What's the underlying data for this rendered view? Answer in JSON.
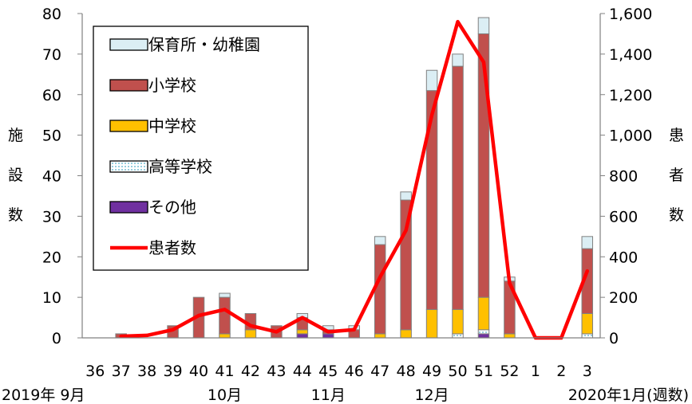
{
  "chart_data": {
    "type": "bar",
    "stacked": true,
    "categories": [
      "36",
      "37",
      "38",
      "39",
      "40",
      "41",
      "42",
      "43",
      "44",
      "45",
      "46",
      "47",
      "48",
      "49",
      "50",
      "51",
      "52",
      "1",
      "2",
      "3"
    ],
    "series": [
      {
        "name": "その他",
        "color": "#7030a0",
        "values": [
          0,
          0,
          0,
          0,
          0,
          0,
          0,
          0,
          1,
          1,
          0,
          0,
          0,
          0,
          0,
          1,
          0,
          0,
          0,
          0
        ]
      },
      {
        "name": "高等学校",
        "color": "#d5f0ea",
        "values": [
          0,
          0,
          0,
          0,
          0,
          0,
          0,
          0,
          0,
          0,
          0,
          0,
          0,
          0,
          1,
          1,
          0,
          0,
          0,
          1
        ]
      },
      {
        "name": "中学校",
        "color": "#ffc000",
        "values": [
          0,
          0,
          0,
          0,
          0,
          1,
          2,
          0,
          1,
          0,
          0,
          1,
          2,
          7,
          6,
          8,
          1,
          0,
          0,
          5
        ]
      },
      {
        "name": "小学校",
        "color": "#c0504d",
        "values": [
          0,
          1,
          0,
          3,
          10,
          9,
          4,
          3,
          3,
          1,
          2,
          22,
          32,
          54,
          60,
          65,
          13,
          0,
          0,
          16
        ]
      },
      {
        "name": "保育所・幼稚園",
        "color": "#dbeef4",
        "values": [
          0,
          0,
          0,
          0,
          0,
          1,
          0,
          0,
          1,
          1,
          1,
          2,
          2,
          5,
          3,
          4,
          1,
          0,
          0,
          3
        ]
      }
    ],
    "line": {
      "name": "患者数",
      "color": "#ff0000",
      "values": [
        null,
        8,
        12,
        40,
        110,
        140,
        60,
        30,
        100,
        30,
        40,
        300,
        530,
        1100,
        1560,
        1360,
        270,
        0,
        0,
        330
      ]
    },
    "y_left": {
      "label": "施設数",
      "label_chars": [
        "施",
        "設",
        "数"
      ],
      "ylim": [
        0,
        80
      ],
      "ticks": [
        "0",
        "10",
        "20",
        "30",
        "40",
        "50",
        "60",
        "70",
        "80"
      ]
    },
    "y_right": {
      "label": "患者数",
      "label_chars": [
        "患",
        "者",
        "数"
      ],
      "ylim": [
        0,
        1600
      ],
      "ticks": [
        "0",
        "200",
        "400",
        "600",
        "800",
        "1,000",
        "1,200",
        "1,400",
        "1,600"
      ]
    },
    "x_axis": {
      "labels": [
        "36",
        "37",
        "38",
        "39",
        "40",
        "41",
        "42",
        "43",
        "44",
        "45",
        "46",
        "47",
        "48",
        "49",
        "50",
        "51",
        "52",
        "1",
        "2",
        "3"
      ],
      "groups": [
        {
          "text": "2019年 9月",
          "at_index": 0
        },
        {
          "text": "10月",
          "at_index": 5
        },
        {
          "text": "11月",
          "at_index": 9
        },
        {
          "text": "12月",
          "at_index": 13
        },
        {
          "text": "2020年1月(週数)",
          "at_index": 18
        }
      ]
    },
    "legend": {
      "position": "top-left",
      "entries": [
        "保育所・幼稚園",
        "小学校",
        "中学校",
        "高等学校",
        "その他",
        "患者数"
      ]
    },
    "grid": false
  }
}
